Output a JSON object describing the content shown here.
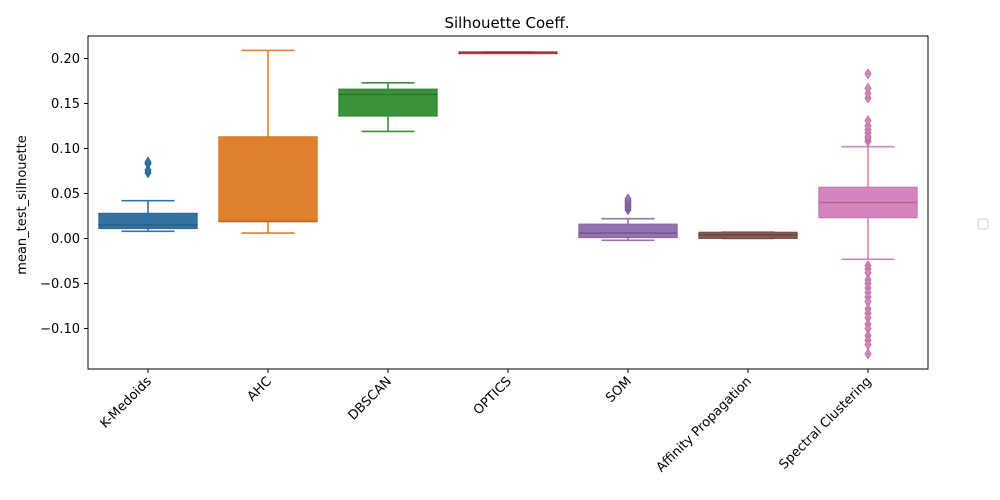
{
  "chart_data": {
    "type": "box",
    "title": "Silhouette Coeff.",
    "xlabel": "",
    "ylabel": "mean_test_silhouette",
    "ylim": [
      -0.145,
      0.225
    ],
    "yticks": [
      -0.1,
      -0.05,
      0.0,
      0.05,
      0.1,
      0.15,
      0.2
    ],
    "ytick_labels": [
      "−0.10",
      "−0.05",
      "0.00",
      "0.05",
      "0.10",
      "0.15",
      "0.20"
    ],
    "grid": false,
    "legend": "right (empty)",
    "boxes": [
      {
        "category": "K-Medoids",
        "color": "#3274a1",
        "whisker_low": 0.008,
        "q1": 0.011,
        "median": 0.015,
        "q3": 0.028,
        "whisker_high": 0.042,
        "outliers": [
          0.073,
          0.076,
          0.083,
          0.085
        ]
      },
      {
        "category": "AHC",
        "color": "#e1812c",
        "whisker_low": 0.006,
        "q1": 0.019,
        "median": 0.019,
        "q3": 0.113,
        "whisker_high": 0.209,
        "outliers": []
      },
      {
        "category": "DBSCAN",
        "color": "#3a923a",
        "whisker_low": 0.119,
        "q1": 0.136,
        "median": 0.16,
        "q3": 0.166,
        "whisker_high": 0.173,
        "outliers": []
      },
      {
        "category": "OPTICS",
        "color": "#c03d3e",
        "whisker_low": 0.207,
        "q1": 0.207,
        "median": 0.207,
        "q3": 0.207,
        "whisker_high": 0.207,
        "outliers": []
      },
      {
        "category": "SOM",
        "color": "#9372b2",
        "whisker_low": -0.002,
        "q1": 0.001,
        "median": 0.006,
        "q3": 0.016,
        "whisker_high": 0.022,
        "outliers": [
          0.032,
          0.034,
          0.036,
          0.038,
          0.04,
          0.042,
          0.044
        ]
      },
      {
        "category": "Affinity Propagation",
        "color": "#845b53",
        "whisker_low": 0.0,
        "q1": 0.0,
        "median": 0.004,
        "q3": 0.007,
        "whisker_high": 0.007,
        "outliers": []
      },
      {
        "category": "Spectral Clustering",
        "color": "#d684bd",
        "whisker_low": -0.023,
        "q1": 0.023,
        "median": 0.04,
        "q3": 0.057,
        "whisker_high": 0.102,
        "outliers": [
          0.108,
          0.111,
          0.113,
          0.117,
          0.121,
          0.125,
          0.131,
          0.156,
          0.161,
          0.167,
          0.183,
          -0.03,
          -0.034,
          -0.038,
          -0.046,
          -0.05,
          -0.055,
          -0.06,
          -0.065,
          -0.07,
          -0.078,
          -0.083,
          -0.088,
          -0.095,
          -0.1,
          -0.108,
          -0.113,
          -0.118,
          -0.128
        ]
      }
    ]
  }
}
